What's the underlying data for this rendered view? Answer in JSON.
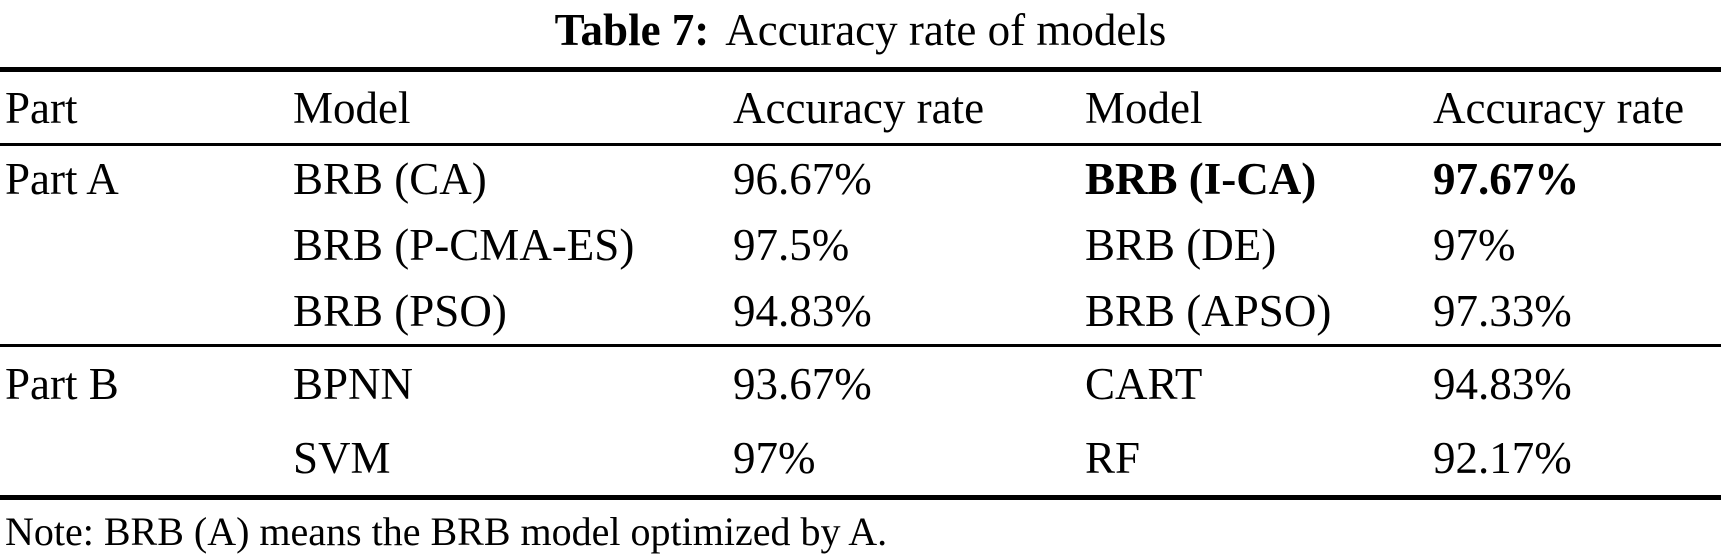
{
  "caption": {
    "label": "Table 7:",
    "text": "Accuracy rate of models"
  },
  "table": {
    "headers": [
      "Part",
      "Model",
      "Accuracy rate",
      "Model",
      "Accuracy rate"
    ],
    "group_a": {
      "part": "Part A",
      "rows": [
        {
          "model_l": "BRB (CA)",
          "acc_l": "96.67%",
          "model_r": "BRB (I-CA)",
          "acc_r": "97.67%"
        },
        {
          "model_l": "BRB (P-CMA-ES)",
          "acc_l": "97.5%",
          "model_r": "BRB (DE)",
          "acc_r": "97%"
        },
        {
          "model_l": "BRB (PSO)",
          "acc_l": "94.83%",
          "model_r": "BRB (APSO)",
          "acc_r": "97.33%"
        }
      ]
    },
    "group_b": {
      "part": "Part B",
      "rows": [
        {
          "model_l": "BPNN",
          "acc_l": "93.67%",
          "model_r": "CART",
          "acc_r": "94.83%"
        },
        {
          "model_l": "SVM",
          "acc_l": "97%",
          "model_r": "RF",
          "acc_r": "92.17%"
        }
      ]
    }
  },
  "note": "Note: BRB (A) means the BRB model optimized by A.",
  "colors": {
    "text": "#000000",
    "background": "#ffffff",
    "rule": "#000000"
  }
}
